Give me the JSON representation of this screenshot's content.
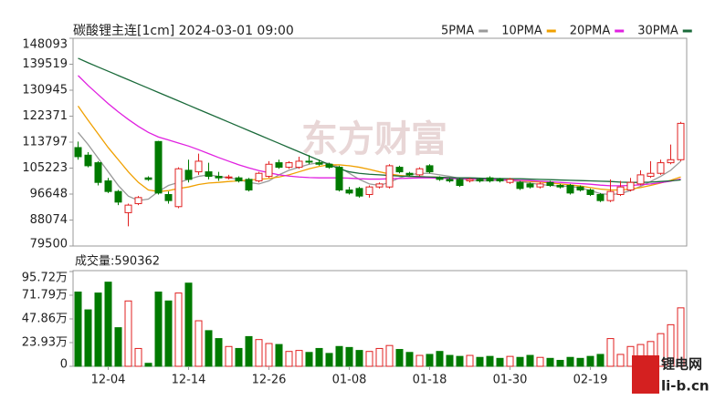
{
  "chart_data": [
    {
      "type": "candlestick",
      "title": "碳酸锂主连[1cm] 2024-03-01 09:00",
      "up_color": "#e02020",
      "down_color": "#007a00",
      "ylim": [
        79500,
        148093
      ],
      "yticks": [
        79500,
        88074,
        96648,
        105223,
        113797,
        122371,
        130945,
        139519,
        148093
      ],
      "open": [
        112000,
        109500,
        107000,
        101000,
        97500,
        90500,
        93500,
        102000,
        114000,
        96500,
        92500,
        104500,
        104000,
        104000,
        102500,
        102000,
        102000,
        101500,
        101000,
        102500,
        107000,
        105500,
        105500,
        107500,
        107000,
        106500,
        105500,
        98000,
        98500,
        96500,
        99000,
        99000,
        105500,
        103500,
        103000,
        106000,
        102000,
        101500,
        101500,
        101000,
        101500,
        102000,
        101500,
        100500,
        100500,
        100000,
        99000,
        100500,
        99500,
        99500,
        99000,
        98000,
        96500,
        94500,
        96500,
        98000,
        100000,
        102500,
        103500,
        107000,
        108000
      ],
      "high": [
        114000,
        110500,
        107500,
        102000,
        98000,
        93500,
        96000,
        102500,
        114200,
        97500,
        105500,
        108000,
        110000,
        107000,
        104000,
        103000,
        102500,
        102000,
        104000,
        107500,
        108000,
        107500,
        109000,
        109500,
        108000,
        107000,
        106000,
        99000,
        99000,
        99500,
        100500,
        106500,
        106000,
        104000,
        105500,
        106500,
        102500,
        102000,
        102000,
        102000,
        102000,
        102500,
        102000,
        102000,
        101000,
        100500,
        100500,
        101000,
        100000,
        100000,
        99500,
        98500,
        97000,
        101500,
        101000,
        102000,
        104500,
        107500,
        108000,
        113000,
        120500
      ],
      "low": [
        108000,
        105500,
        99500,
        97000,
        93000,
        86000,
        93000,
        101000,
        96500,
        93500,
        92000,
        100500,
        103000,
        101500,
        101000,
        101500,
        100500,
        97500,
        100500,
        102000,
        105000,
        105000,
        105000,
        106500,
        106000,
        105000,
        97500,
        96500,
        95500,
        95500,
        98500,
        98500,
        103500,
        102500,
        102500,
        103500,
        101000,
        100500,
        99000,
        100500,
        100500,
        100500,
        100500,
        100000,
        98000,
        98500,
        98500,
        99000,
        98500,
        96500,
        97500,
        96000,
        94000,
        94000,
        96000,
        97500,
        99500,
        102000,
        103000,
        106500,
        107500
      ],
      "close": [
        109000,
        106000,
        100500,
        97500,
        94000,
        93000,
        95500,
        101500,
        97000,
        94500,
        105000,
        101500,
        107500,
        102500,
        102000,
        102300,
        101000,
        98000,
        103500,
        106500,
        105500,
        107000,
        107500,
        107200,
        106500,
        105500,
        98000,
        97000,
        96000,
        99000,
        100000,
        106000,
        104000,
        103000,
        105000,
        104000,
        101500,
        101000,
        99500,
        101500,
        101000,
        101000,
        101000,
        101500,
        98500,
        99000,
        100000,
        99500,
        99000,
        97000,
        98000,
        96500,
        94500,
        97500,
        99000,
        100500,
        103000,
        103500,
        107000,
        108000,
        120000
      ],
      "series": [
        {
          "name": "5PMA",
          "color": "#999999",
          "values": [
            117000,
            113000,
            108500,
            104000,
            99500,
            96000,
            94500,
            95000,
            97500,
            99500,
            100500,
            101500,
            102500,
            103000,
            102500,
            102000,
            101500,
            100500,
            100000,
            101000,
            103000,
            104500,
            105500,
            106500,
            107000,
            106800,
            105500,
            103500,
            101500,
            100000,
            99500,
            100500,
            102000,
            103000,
            103500,
            103500,
            103000,
            102500,
            101800,
            101200,
            101000,
            101000,
            101200,
            101100,
            100800,
            100300,
            99800,
            99500,
            99300,
            99200,
            98700,
            97800,
            96800,
            96500,
            96800,
            97800,
            99200,
            100800,
            102500,
            104500,
            107500
          ]
        },
        {
          "name": "10PMA",
          "color": "#f0a000",
          "values": [
            125700,
            121000,
            116500,
            112000,
            108000,
            104000,
            100500,
            98000,
            97500,
            97800,
            98500,
            99000,
            99800,
            100300,
            100500,
            100800,
            101000,
            101300,
            101500,
            101800,
            102300,
            103000,
            104000,
            105000,
            105800,
            106300,
            106300,
            106000,
            105500,
            104800,
            104000,
            103300,
            102800,
            102500,
            102400,
            102300,
            102200,
            102000,
            101800,
            101700,
            101600,
            101500,
            101400,
            101300,
            101100,
            100800,
            100600,
            100300,
            100000,
            99700,
            99300,
            98800,
            98300,
            98000,
            98000,
            98300,
            98800,
            99500,
            100300,
            101200,
            102300
          ]
        },
        {
          "name": "20PMA",
          "color": "#e020e0",
          "values": [
            135800,
            132500,
            129500,
            126500,
            123800,
            121300,
            119000,
            117000,
            115500,
            114500,
            113500,
            112500,
            111300,
            110000,
            108700,
            107500,
            106300,
            105300,
            104400,
            103700,
            103000,
            102600,
            102300,
            102100,
            102000,
            102000,
            102000,
            101900,
            101700,
            101600,
            101600,
            101700,
            101800,
            101900,
            102000,
            102000,
            101900,
            101800,
            101700,
            101700,
            101600,
            101500,
            101400,
            101300,
            101200,
            101100,
            100900,
            100700,
            100500,
            100300,
            100100,
            99900,
            99600,
            99400,
            99400,
            99500,
            99700,
            100000,
            100400,
            100900,
            101600
          ]
        },
        {
          "name": "30PMA",
          "color": "#1a6a3a",
          "values": [
            141500,
            140000,
            138600,
            137200,
            135800,
            134400,
            133000,
            131600,
            130200,
            128800,
            127400,
            126000,
            124600,
            123200,
            121800,
            120400,
            119000,
            117600,
            116200,
            114800,
            113400,
            112000,
            110600,
            109200,
            107800,
            106400,
            105000,
            104000,
            103500,
            103200,
            103000,
            102800,
            102600,
            102500,
            102400,
            102300,
            102200,
            102100,
            102000,
            102000,
            101900,
            101800,
            101800,
            101700,
            101700,
            101600,
            101500,
            101400,
            101300,
            101200,
            101100,
            101000,
            100900,
            100800,
            100600,
            100500,
            100500,
            100600,
            100800,
            101000,
            101300
          ]
        }
      ]
    },
    {
      "type": "bar",
      "title": "成交量:590362",
      "ylim": [
        0,
        957200
      ],
      "yticks": [
        0,
        {
          "value": 239300,
          "label": "23.93万"
        },
        {
          "value": 478600,
          "label": "47.86万"
        },
        {
          "value": 717900,
          "label": "71.79万"
        },
        {
          "value": 957200,
          "label": "95.72万"
        }
      ],
      "categories": [
        null,
        null,
        null,
        "12-04",
        null,
        null,
        null,
        null,
        null,
        null,
        null,
        "12-14",
        null,
        null,
        null,
        null,
        null,
        null,
        null,
        "12-26",
        null,
        null,
        null,
        null,
        null,
        null,
        null,
        "01-08",
        null,
        null,
        null,
        null,
        null,
        null,
        null,
        "01-18",
        null,
        null,
        null,
        null,
        null,
        null,
        null,
        "01-30",
        null,
        null,
        null,
        null,
        null,
        null,
        null,
        "02-19",
        null,
        null,
        null,
        null,
        null,
        null,
        null,
        null,
        null
      ],
      "values": [
        750000,
        570000,
        740000,
        850000,
        390000,
        660000,
        180000,
        30000,
        750000,
        660000,
        740000,
        840000,
        460000,
        360000,
        280000,
        200000,
        180000,
        300000,
        270000,
        230000,
        220000,
        150000,
        160000,
        140000,
        180000,
        130000,
        200000,
        190000,
        160000,
        150000,
        180000,
        210000,
        170000,
        140000,
        110000,
        120000,
        150000,
        110000,
        100000,
        110000,
        90000,
        100000,
        80000,
        100000,
        90000,
        110000,
        90000,
        80000,
        60000,
        90000,
        80000,
        100000,
        120000,
        280000,
        120000,
        200000,
        220000,
        250000,
        330000,
        420000,
        590362
      ]
    }
  ],
  "watermark": "东方财富",
  "logo": {
    "title": "锂电网",
    "subtitle": "li-b.cn"
  }
}
